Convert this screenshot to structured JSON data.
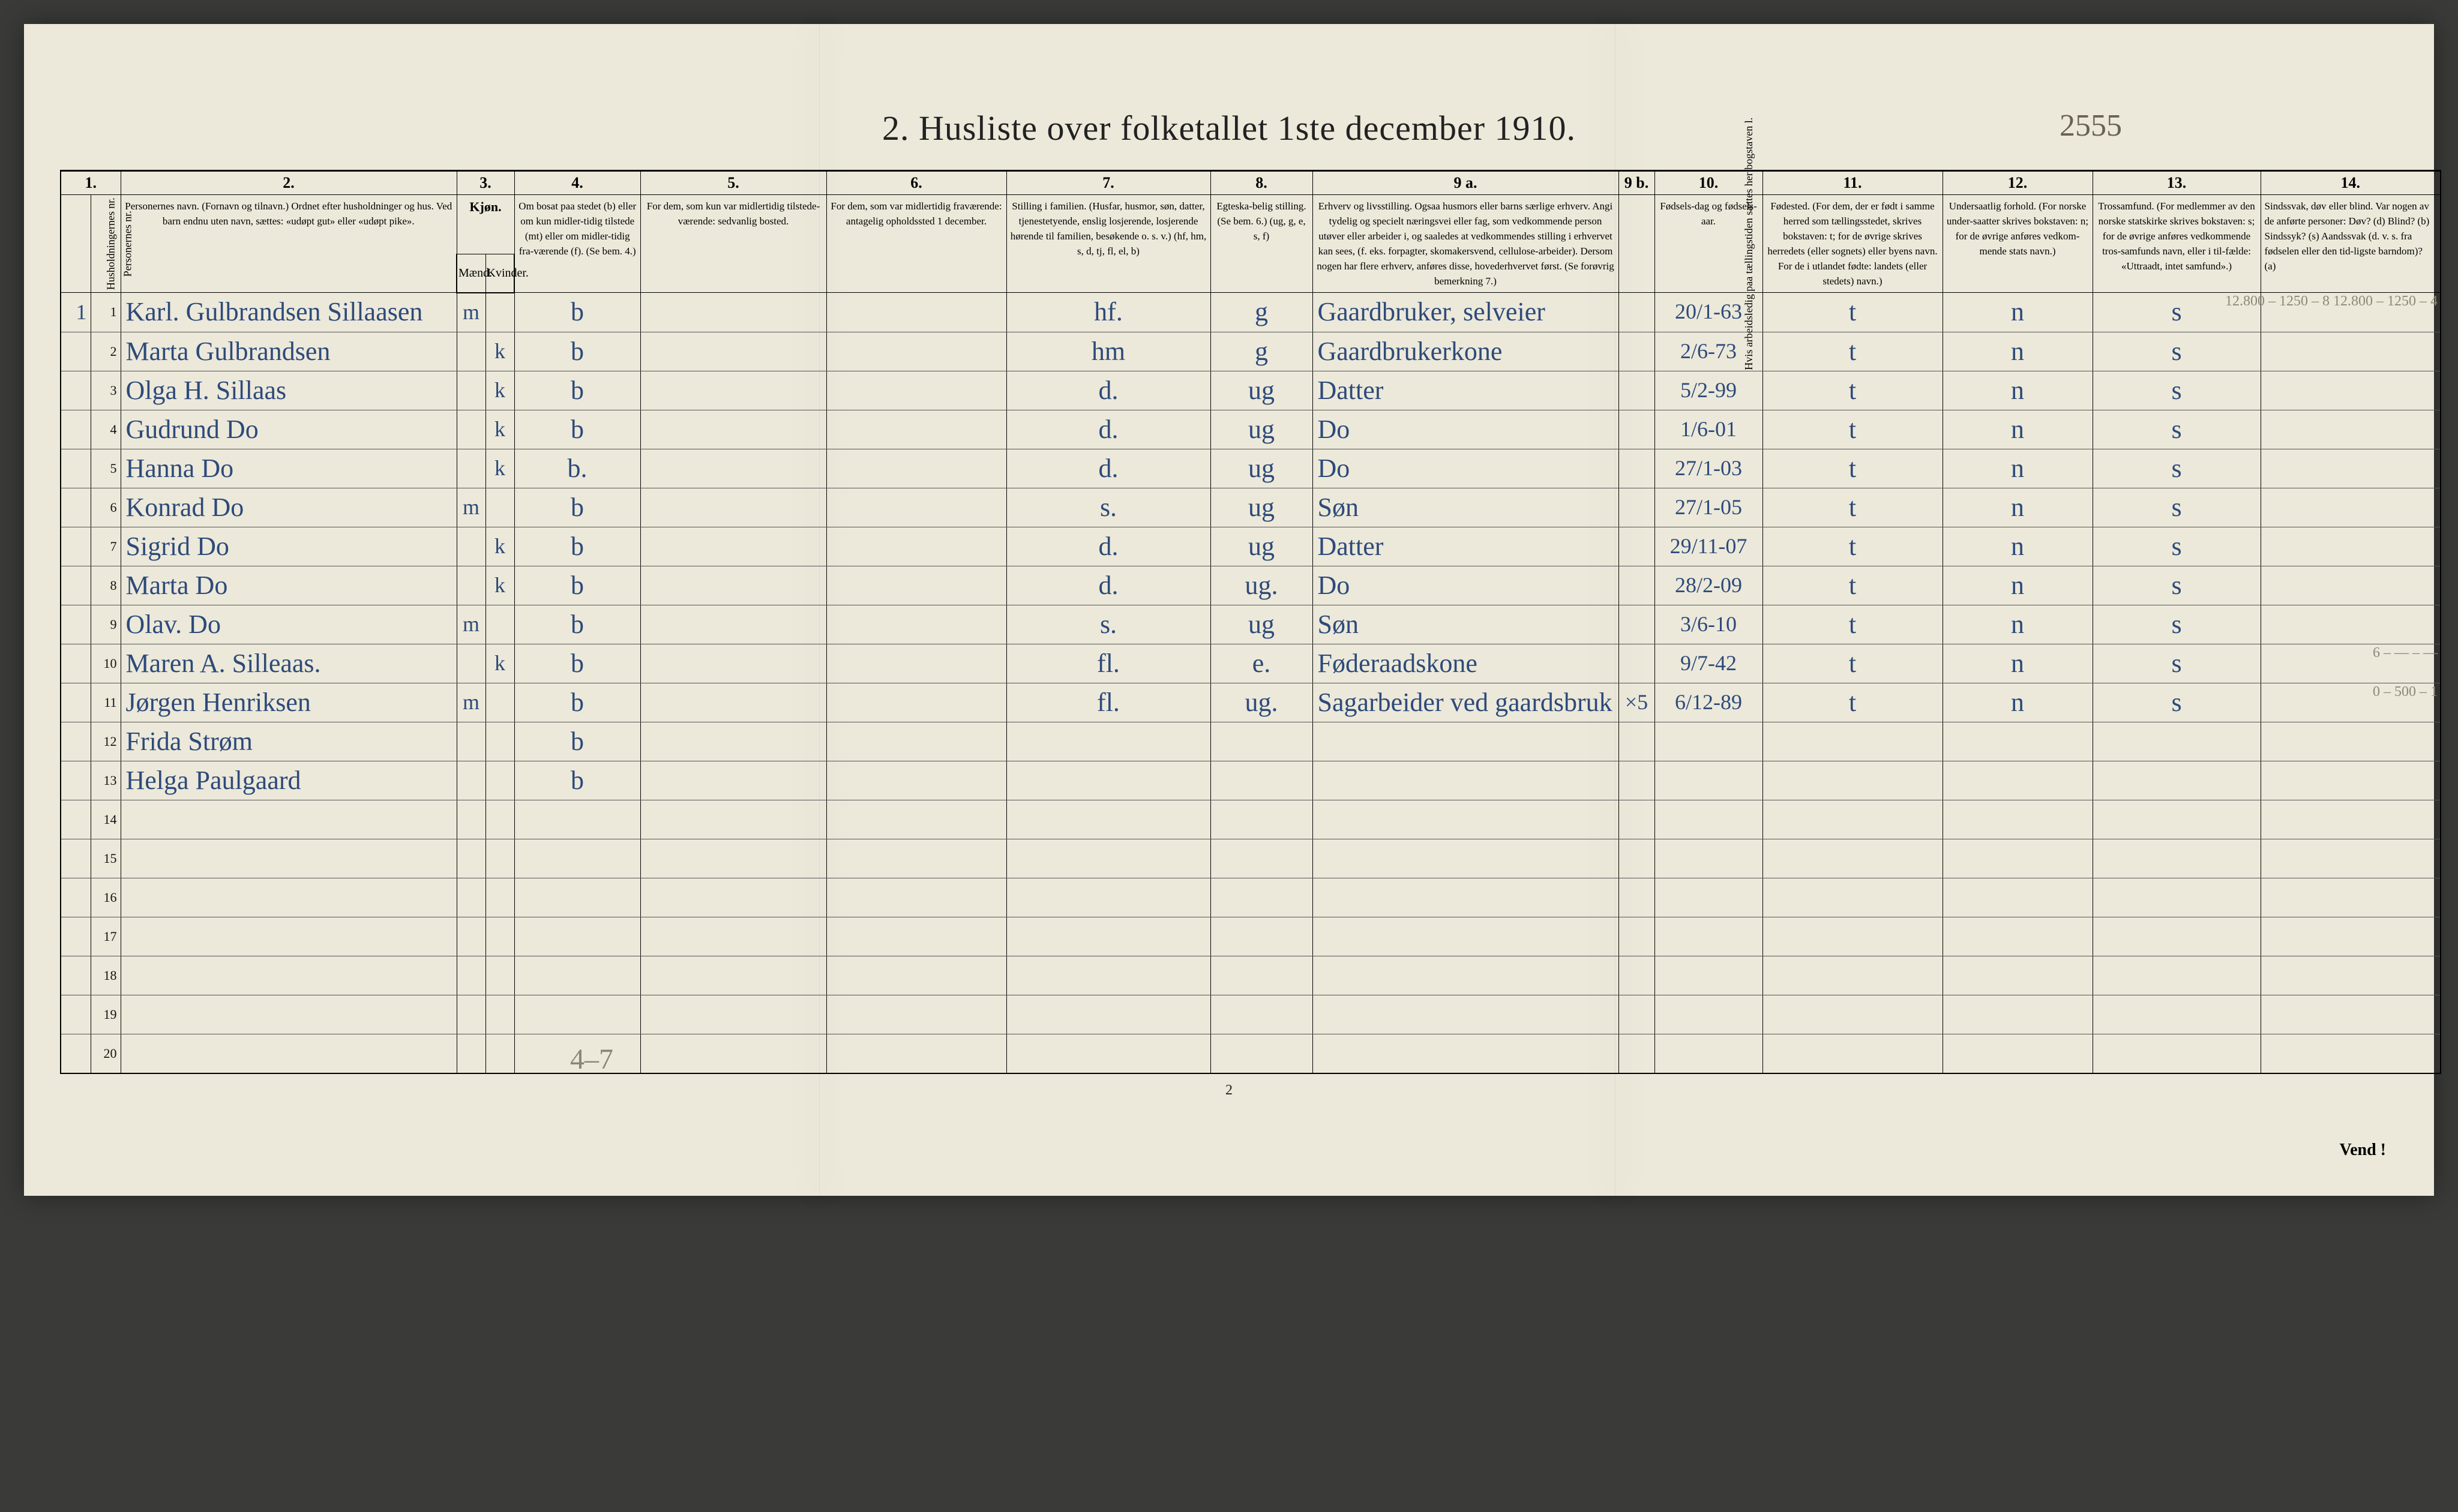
{
  "title": "2.  Husliste over folketallet 1ste december 1910.",
  "top_annotation": "2555",
  "footer_pencil": "4–7",
  "page_number": "2",
  "vend": "Vend !",
  "col_numbers": [
    "1.",
    "2.",
    "3.",
    "4.",
    "5.",
    "6.",
    "7.",
    "8.",
    "9 a.",
    "9 b.",
    "10.",
    "11.",
    "12.",
    "13.",
    "14."
  ],
  "headers": {
    "h1a": "Husholdningernes nr.",
    "h1b": "Personernes nr.",
    "h2": "Personernes navn.\n(Fornavn og tilnavn.)\nOrdnet efter husholdninger og hus.\nVed barn endnu uten navn, sættes: «udøpt gut» eller «udøpt pike».",
    "h3": "Kjøn.",
    "h3a": "Mænd.",
    "h3b": "Kvinder.",
    "h4": "Om bosat paa stedet (b) eller om kun midler-tidig tilstede (mt) eller om midler-tidig fra-værende (f).\n(Se bem. 4.)",
    "h5": "For dem, som kun var midlertidig tilstede-værende:\nsedvanlig bosted.",
    "h6": "For dem, som var midlertidig fraværende:\nantagelig opholdssted 1 december.",
    "h7": "Stilling i familien.\n(Husfar, husmor, søn, datter, tjenestetyende, enslig losjerende, losjerende hørende til familien, besøkende o. s. v.)\n(hf, hm, s, d, tj, fl, el, b)",
    "h8": "Egteska-belig stilling.\n(Se bem. 6.)\n(ug, g, e, s, f)",
    "h9a": "Erhverv og livsstilling.\nOgsaa husmors eller barns særlige erhverv. Angi tydelig og specielt næringsvei eller fag, som vedkommende person utøver eller arbeider i, og saaledes at vedkommendes stilling i erhvervet kan sees, (f. eks. forpagter, skomakersvend, cellulose-arbeider). Dersom nogen har flere erhverv, anføres disse, hovederhvervet først.\n(Se forøvrig bemerkning 7.)",
    "h9b": "Hvis arbeidsledig paa tællingstiden sættes her bogstaven l.",
    "h10": "Fødsels-dag og fødsels-aar.",
    "h11": "Fødested.\n(For dem, der er født i samme herred som tællingsstedet, skrives bokstaven: t; for de øvrige skrives herredets (eller sognets) eller byens navn. For de i utlandet fødte: landets (eller stedets) navn.)",
    "h12": "Undersaatlig forhold.\n(For norske under-saatter skrives bokstaven: n; for de øvrige anføres vedkom-mende stats navn.)",
    "h13": "Trossamfund.\n(For medlemmer av den norske statskirke skrives bokstaven: s; for de øvrige anføres vedkommende tros-samfunds navn, eller i til-fælde: «Uttraadt, intet samfund».)",
    "h14": "Sindssvak, døv eller blind.\nVar nogen av de anførte personer:\nDøv?        (d)\nBlind?       (b)\nSindssyk?  (s)\nAandssvak (d. v. s. fra fødselen eller den tid-ligste barndom)?  (a)"
  },
  "margin_notes": {
    "r1": "12.800 – 1250 – 8\n12.800 – 1250 – 4",
    "r10": "6 – — – —",
    "r11": "0 – 500 – 1"
  },
  "rows": [
    {
      "hh": "1",
      "p": "1",
      "name": "Karl. Gulbrandsen Sillaasen",
      "m": "m",
      "k": "",
      "bmt": "b",
      "c5": "",
      "c6": "",
      "fam": "hf.",
      "civ": "g",
      "occ": "Gaardbruker, selveier",
      "c9b": "",
      "dob": "20/1-63",
      "birthpl": "t",
      "nat": "n",
      "rel": "s",
      "c14": ""
    },
    {
      "hh": "",
      "p": "2",
      "name": "Marta Gulbrandsen",
      "m": "",
      "k": "k",
      "bmt": "b",
      "c5": "",
      "c6": "",
      "fam": "hm",
      "civ": "g",
      "occ": "Gaardbrukerkone",
      "c9b": "",
      "dob": "2/6-73",
      "birthpl": "t",
      "nat": "n",
      "rel": "s",
      "c14": ""
    },
    {
      "hh": "",
      "p": "3",
      "name": "Olga H. Sillaas",
      "m": "",
      "k": "k",
      "bmt": "b",
      "c5": "",
      "c6": "",
      "fam": "d.",
      "civ": "ug",
      "occ": "Datter",
      "c9b": "",
      "dob": "5/2-99",
      "birthpl": "t",
      "nat": "n",
      "rel": "s",
      "c14": ""
    },
    {
      "hh": "",
      "p": "4",
      "name": "Gudrund   Do",
      "m": "",
      "k": "k",
      "bmt": "b",
      "c5": "",
      "c6": "",
      "fam": "d.",
      "civ": "ug",
      "occ": "Do",
      "c9b": "",
      "dob": "1/6-01",
      "birthpl": "t",
      "nat": "n",
      "rel": "s",
      "c14": ""
    },
    {
      "hh": "",
      "p": "5",
      "name": "Hanna     Do",
      "m": "",
      "k": "k",
      "bmt": "b.",
      "c5": "",
      "c6": "",
      "fam": "d.",
      "civ": "ug",
      "occ": "Do",
      "c9b": "",
      "dob": "27/1-03",
      "birthpl": "t",
      "nat": "n",
      "rel": "s",
      "c14": ""
    },
    {
      "hh": "",
      "p": "6",
      "name": "Konrad    Do",
      "m": "m",
      "k": "",
      "bmt": "b",
      "c5": "",
      "c6": "",
      "fam": "s.",
      "civ": "ug",
      "occ": "Søn",
      "c9b": "",
      "dob": "27/1-05",
      "birthpl": "t",
      "nat": "n",
      "rel": "s",
      "c14": ""
    },
    {
      "hh": "",
      "p": "7",
      "name": "Sigrid    Do",
      "m": "",
      "k": "k",
      "bmt": "b",
      "c5": "",
      "c6": "",
      "fam": "d.",
      "civ": "ug",
      "occ": "Datter",
      "c9b": "",
      "dob": "29/11-07",
      "birthpl": "t",
      "nat": "n",
      "rel": "s",
      "c14": ""
    },
    {
      "hh": "",
      "p": "8",
      "name": "Marta     Do",
      "m": "",
      "k": "k",
      "bmt": "b",
      "c5": "",
      "c6": "",
      "fam": "d.",
      "civ": "ug.",
      "occ": "Do",
      "c9b": "",
      "dob": "28/2-09",
      "birthpl": "t",
      "nat": "n",
      "rel": "s",
      "c14": ""
    },
    {
      "hh": "",
      "p": "9",
      "name": "Olav.     Do",
      "m": "m",
      "k": "",
      "bmt": "b",
      "c5": "",
      "c6": "",
      "fam": "s.",
      "civ": "ug",
      "occ": "Søn",
      "c9b": "",
      "dob": "3/6-10",
      "birthpl": "t",
      "nat": "n",
      "rel": "s",
      "c14": ""
    },
    {
      "hh": "",
      "p": "10",
      "name": "Maren A. Silleaas.",
      "m": "",
      "k": "k",
      "bmt": "b",
      "c5": "",
      "c6": "",
      "fam": "fl.",
      "civ": "e.",
      "occ": "Føderaadskone",
      "c9b": "",
      "dob": "9/7-42",
      "birthpl": "t",
      "nat": "n",
      "rel": "s",
      "c14": ""
    },
    {
      "hh": "",
      "p": "11",
      "name": "Jørgen Henriksen",
      "m": "m",
      "k": "",
      "bmt": "b",
      "c5": "",
      "c6": "",
      "fam": "fl.",
      "civ": "ug.",
      "occ": "Sagarbeider ved gaardsbruk",
      "c9b": "×5",
      "dob": "6/12-89",
      "birthpl": "t",
      "nat": "n",
      "rel": "s",
      "c14": ""
    },
    {
      "hh": "",
      "p": "12",
      "name": "Frida Strøm",
      "m": "",
      "k": "",
      "bmt": "b",
      "c5": "",
      "c6": "",
      "fam": "",
      "civ": "",
      "occ": "",
      "c9b": "",
      "dob": "",
      "birthpl": "",
      "nat": "",
      "rel": "",
      "c14": ""
    },
    {
      "hh": "",
      "p": "13",
      "name": "Helga Paulgaard",
      "m": "",
      "k": "",
      "bmt": "b",
      "c5": "",
      "c6": "",
      "fam": "",
      "civ": "",
      "occ": "",
      "c9b": "",
      "dob": "",
      "birthpl": "",
      "nat": "",
      "rel": "",
      "c14": ""
    },
    {
      "hh": "",
      "p": "14",
      "name": "",
      "m": "",
      "k": "",
      "bmt": "",
      "c5": "",
      "c6": "",
      "fam": "",
      "civ": "",
      "occ": "",
      "c9b": "",
      "dob": "",
      "birthpl": "",
      "nat": "",
      "rel": "",
      "c14": ""
    },
    {
      "hh": "",
      "p": "15",
      "name": "",
      "m": "",
      "k": "",
      "bmt": "",
      "c5": "",
      "c6": "",
      "fam": "",
      "civ": "",
      "occ": "",
      "c9b": "",
      "dob": "",
      "birthpl": "",
      "nat": "",
      "rel": "",
      "c14": ""
    },
    {
      "hh": "",
      "p": "16",
      "name": "",
      "m": "",
      "k": "",
      "bmt": "",
      "c5": "",
      "c6": "",
      "fam": "",
      "civ": "",
      "occ": "",
      "c9b": "",
      "dob": "",
      "birthpl": "",
      "nat": "",
      "rel": "",
      "c14": ""
    },
    {
      "hh": "",
      "p": "17",
      "name": "",
      "m": "",
      "k": "",
      "bmt": "",
      "c5": "",
      "c6": "",
      "fam": "",
      "civ": "",
      "occ": "",
      "c9b": "",
      "dob": "",
      "birthpl": "",
      "nat": "",
      "rel": "",
      "c14": ""
    },
    {
      "hh": "",
      "p": "18",
      "name": "",
      "m": "",
      "k": "",
      "bmt": "",
      "c5": "",
      "c6": "",
      "fam": "",
      "civ": "",
      "occ": "",
      "c9b": "",
      "dob": "",
      "birthpl": "",
      "nat": "",
      "rel": "",
      "c14": ""
    },
    {
      "hh": "",
      "p": "19",
      "name": "",
      "m": "",
      "k": "",
      "bmt": "",
      "c5": "",
      "c6": "",
      "fam": "",
      "civ": "",
      "occ": "",
      "c9b": "",
      "dob": "",
      "birthpl": "",
      "nat": "",
      "rel": "",
      "c14": ""
    },
    {
      "hh": "",
      "p": "20",
      "name": "",
      "m": "",
      "k": "",
      "bmt": "",
      "c5": "",
      "c6": "",
      "fam": "",
      "civ": "",
      "occ": "",
      "c9b": "",
      "dob": "",
      "birthpl": "",
      "nat": "",
      "rel": "",
      "c14": ""
    }
  ]
}
